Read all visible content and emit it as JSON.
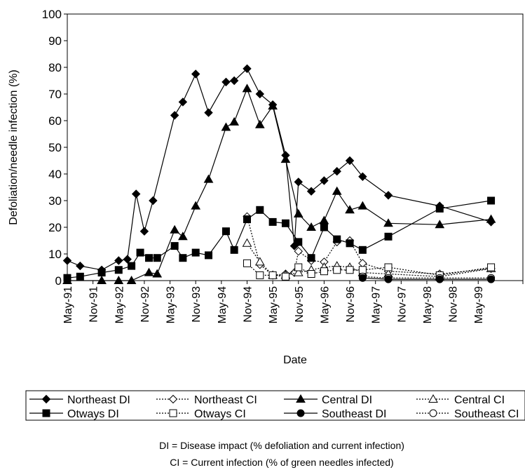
{
  "chart_data": {
    "type": "line",
    "ylabel": "Defoliation/needle infection (%)",
    "xlabel": "Date",
    "ylim": [
      0,
      100
    ],
    "yticks": [
      "0",
      "10",
      "20",
      "30",
      "40",
      "50",
      "60",
      "70",
      "80",
      "90",
      "100"
    ],
    "xlim": [
      1991.33,
      2000.2
    ],
    "xticks": [
      {
        "label": "May-91",
        "t": 1991.33
      },
      {
        "label": "Nov-91",
        "t": 1991.83
      },
      {
        "label": "May-92",
        "t": 1992.33
      },
      {
        "label": "Nov-92",
        "t": 1992.83
      },
      {
        "label": "May-93",
        "t": 1993.33
      },
      {
        "label": "Nov-93",
        "t": 1993.83
      },
      {
        "label": "May-94",
        "t": 1994.33
      },
      {
        "label": "Nov-94",
        "t": 1994.83
      },
      {
        "label": "May-95",
        "t": 1995.33
      },
      {
        "label": "Nov-95",
        "t": 1995.83
      },
      {
        "label": "May-96",
        "t": 1996.33
      },
      {
        "label": "Nov-96",
        "t": 1996.83
      },
      {
        "label": "May-97",
        "t": 1997.33
      },
      {
        "label": "Nov-97",
        "t": 1997.83
      },
      {
        "label": "May-98",
        "t": 1998.33
      },
      {
        "label": "Nov-98",
        "t": 1998.83
      },
      {
        "label": "May-99",
        "t": 1999.33
      }
    ],
    "series": [
      {
        "name": "Northeast DI",
        "marker": "diamond",
        "filled": true,
        "dash": "solid",
        "points": [
          [
            1991.33,
            7.5
          ],
          [
            1991.58,
            5.5
          ],
          [
            1992.0,
            4
          ],
          [
            1992.33,
            7.5
          ],
          [
            1992.5,
            8
          ],
          [
            1992.67,
            32.5
          ],
          [
            1992.83,
            18.5
          ],
          [
            1993.0,
            30
          ],
          [
            1993.42,
            62
          ],
          [
            1993.58,
            67
          ],
          [
            1993.83,
            77.5
          ],
          [
            1994.08,
            63
          ],
          [
            1994.42,
            74.5
          ],
          [
            1994.58,
            75
          ],
          [
            1994.83,
            79.5
          ],
          [
            1995.08,
            70
          ],
          [
            1995.33,
            66
          ],
          [
            1995.58,
            47
          ],
          [
            1995.75,
            13
          ],
          [
            1995.83,
            37
          ],
          [
            1996.08,
            33.5
          ],
          [
            1996.33,
            37.5
          ],
          [
            1996.58,
            41
          ],
          [
            1996.83,
            45
          ],
          [
            1997.08,
            39
          ],
          [
            1997.58,
            32
          ],
          [
            1998.58,
            28
          ],
          [
            1999.58,
            22
          ]
        ]
      },
      {
        "name": "Northeast CI",
        "marker": "diamond",
        "filled": false,
        "dash": "dotted",
        "points": [
          [
            1994.83,
            24
          ],
          [
            1995.08,
            6
          ],
          [
            1995.33,
            2
          ],
          [
            1995.58,
            2.5
          ],
          [
            1995.75,
            3
          ],
          [
            1995.83,
            11
          ],
          [
            1996.08,
            7.5
          ],
          [
            1996.33,
            7
          ],
          [
            1996.58,
            14.5
          ],
          [
            1996.83,
            15
          ],
          [
            1997.08,
            6.5
          ],
          [
            1997.58,
            3.5
          ],
          [
            1998.58,
            2.5
          ],
          [
            1999.58,
            4.5
          ]
        ]
      },
      {
        "name": "Central DI",
        "marker": "triangle",
        "filled": true,
        "dash": "solid",
        "points": [
          [
            1991.33,
            0
          ],
          [
            1992.0,
            0
          ],
          [
            1992.33,
            0
          ],
          [
            1992.58,
            0
          ],
          [
            1992.92,
            3
          ],
          [
            1993.08,
            2.5
          ],
          [
            1993.42,
            19
          ],
          [
            1993.58,
            16.5
          ],
          [
            1993.83,
            28
          ],
          [
            1994.08,
            38
          ],
          [
            1994.42,
            57.5
          ],
          [
            1994.58,
            59.5
          ],
          [
            1994.83,
            72
          ],
          [
            1995.08,
            58.5
          ],
          [
            1995.33,
            65.5
          ],
          [
            1995.58,
            45.5
          ],
          [
            1995.83,
            25
          ],
          [
            1996.08,
            20
          ],
          [
            1996.33,
            22.5
          ],
          [
            1996.58,
            33.5
          ],
          [
            1996.83,
            26.5
          ],
          [
            1997.08,
            28
          ],
          [
            1997.58,
            21.5
          ],
          [
            1998.58,
            21
          ],
          [
            1999.58,
            23
          ]
        ]
      },
      {
        "name": "Central CI",
        "marker": "triangle",
        "filled": false,
        "dash": "dotted",
        "points": [
          [
            1994.83,
            14
          ],
          [
            1995.08,
            7
          ],
          [
            1995.33,
            2
          ],
          [
            1995.58,
            2
          ],
          [
            1995.83,
            3
          ],
          [
            1996.08,
            4
          ],
          [
            1996.33,
            5
          ],
          [
            1996.58,
            5.5
          ],
          [
            1996.83,
            5
          ],
          [
            1997.08,
            3
          ],
          [
            1997.58,
            2.5
          ],
          [
            1998.58,
            1.5
          ],
          [
            1999.58,
            4.5
          ]
        ]
      },
      {
        "name": "Otways DI",
        "marker": "square",
        "filled": true,
        "dash": "solid",
        "points": [
          [
            1991.33,
            1
          ],
          [
            1991.58,
            1.5
          ],
          [
            1992.0,
            3
          ],
          [
            1992.33,
            4
          ],
          [
            1992.58,
            5.5
          ],
          [
            1992.75,
            10.5
          ],
          [
            1992.92,
            8.5
          ],
          [
            1993.08,
            8.5
          ],
          [
            1993.42,
            13
          ],
          [
            1993.58,
            8.5
          ],
          [
            1993.83,
            10.5
          ],
          [
            1994.08,
            9.5
          ],
          [
            1994.42,
            18.5
          ],
          [
            1994.58,
            11.5
          ],
          [
            1994.83,
            23
          ],
          [
            1995.08,
            26.5
          ],
          [
            1995.33,
            22
          ],
          [
            1995.58,
            21.5
          ],
          [
            1995.83,
            14.5
          ],
          [
            1996.08,
            8.5
          ],
          [
            1996.33,
            20
          ],
          [
            1996.58,
            15.5
          ],
          [
            1996.83,
            14
          ],
          [
            1997.08,
            11.5
          ],
          [
            1997.58,
            16.5
          ],
          [
            1998.58,
            27
          ],
          [
            1999.58,
            30
          ]
        ]
      },
      {
        "name": "Otways CI",
        "marker": "square",
        "filled": false,
        "dash": "dotted",
        "points": [
          [
            1994.83,
            6.5
          ],
          [
            1995.08,
            2
          ],
          [
            1995.33,
            2
          ],
          [
            1995.58,
            1.5
          ],
          [
            1995.83,
            5
          ],
          [
            1996.08,
            2.5
          ],
          [
            1996.33,
            3.5
          ],
          [
            1996.58,
            4
          ],
          [
            1996.83,
            4
          ],
          [
            1997.08,
            4
          ],
          [
            1997.58,
            5
          ],
          [
            1998.58,
            2
          ],
          [
            1999.58,
            5
          ]
        ]
      },
      {
        "name": "Southeast DI",
        "marker": "circle",
        "filled": true,
        "dash": "solid",
        "points": [
          [
            1997.08,
            1
          ],
          [
            1997.58,
            0.5
          ],
          [
            1998.58,
            0.5
          ],
          [
            1999.58,
            0.5
          ]
        ]
      },
      {
        "name": "Southeast CI",
        "marker": "circle",
        "filled": false,
        "dash": "dotted",
        "points": [
          [
            1997.08,
            1.5
          ],
          [
            1997.58,
            1
          ],
          [
            1998.58,
            1
          ],
          [
            1999.58,
            1
          ]
        ]
      }
    ],
    "footnotes": [
      "DI = Disease impact (% defoliation and current infection)",
      "CI = Current infection  (% of green needles infected)"
    ]
  }
}
